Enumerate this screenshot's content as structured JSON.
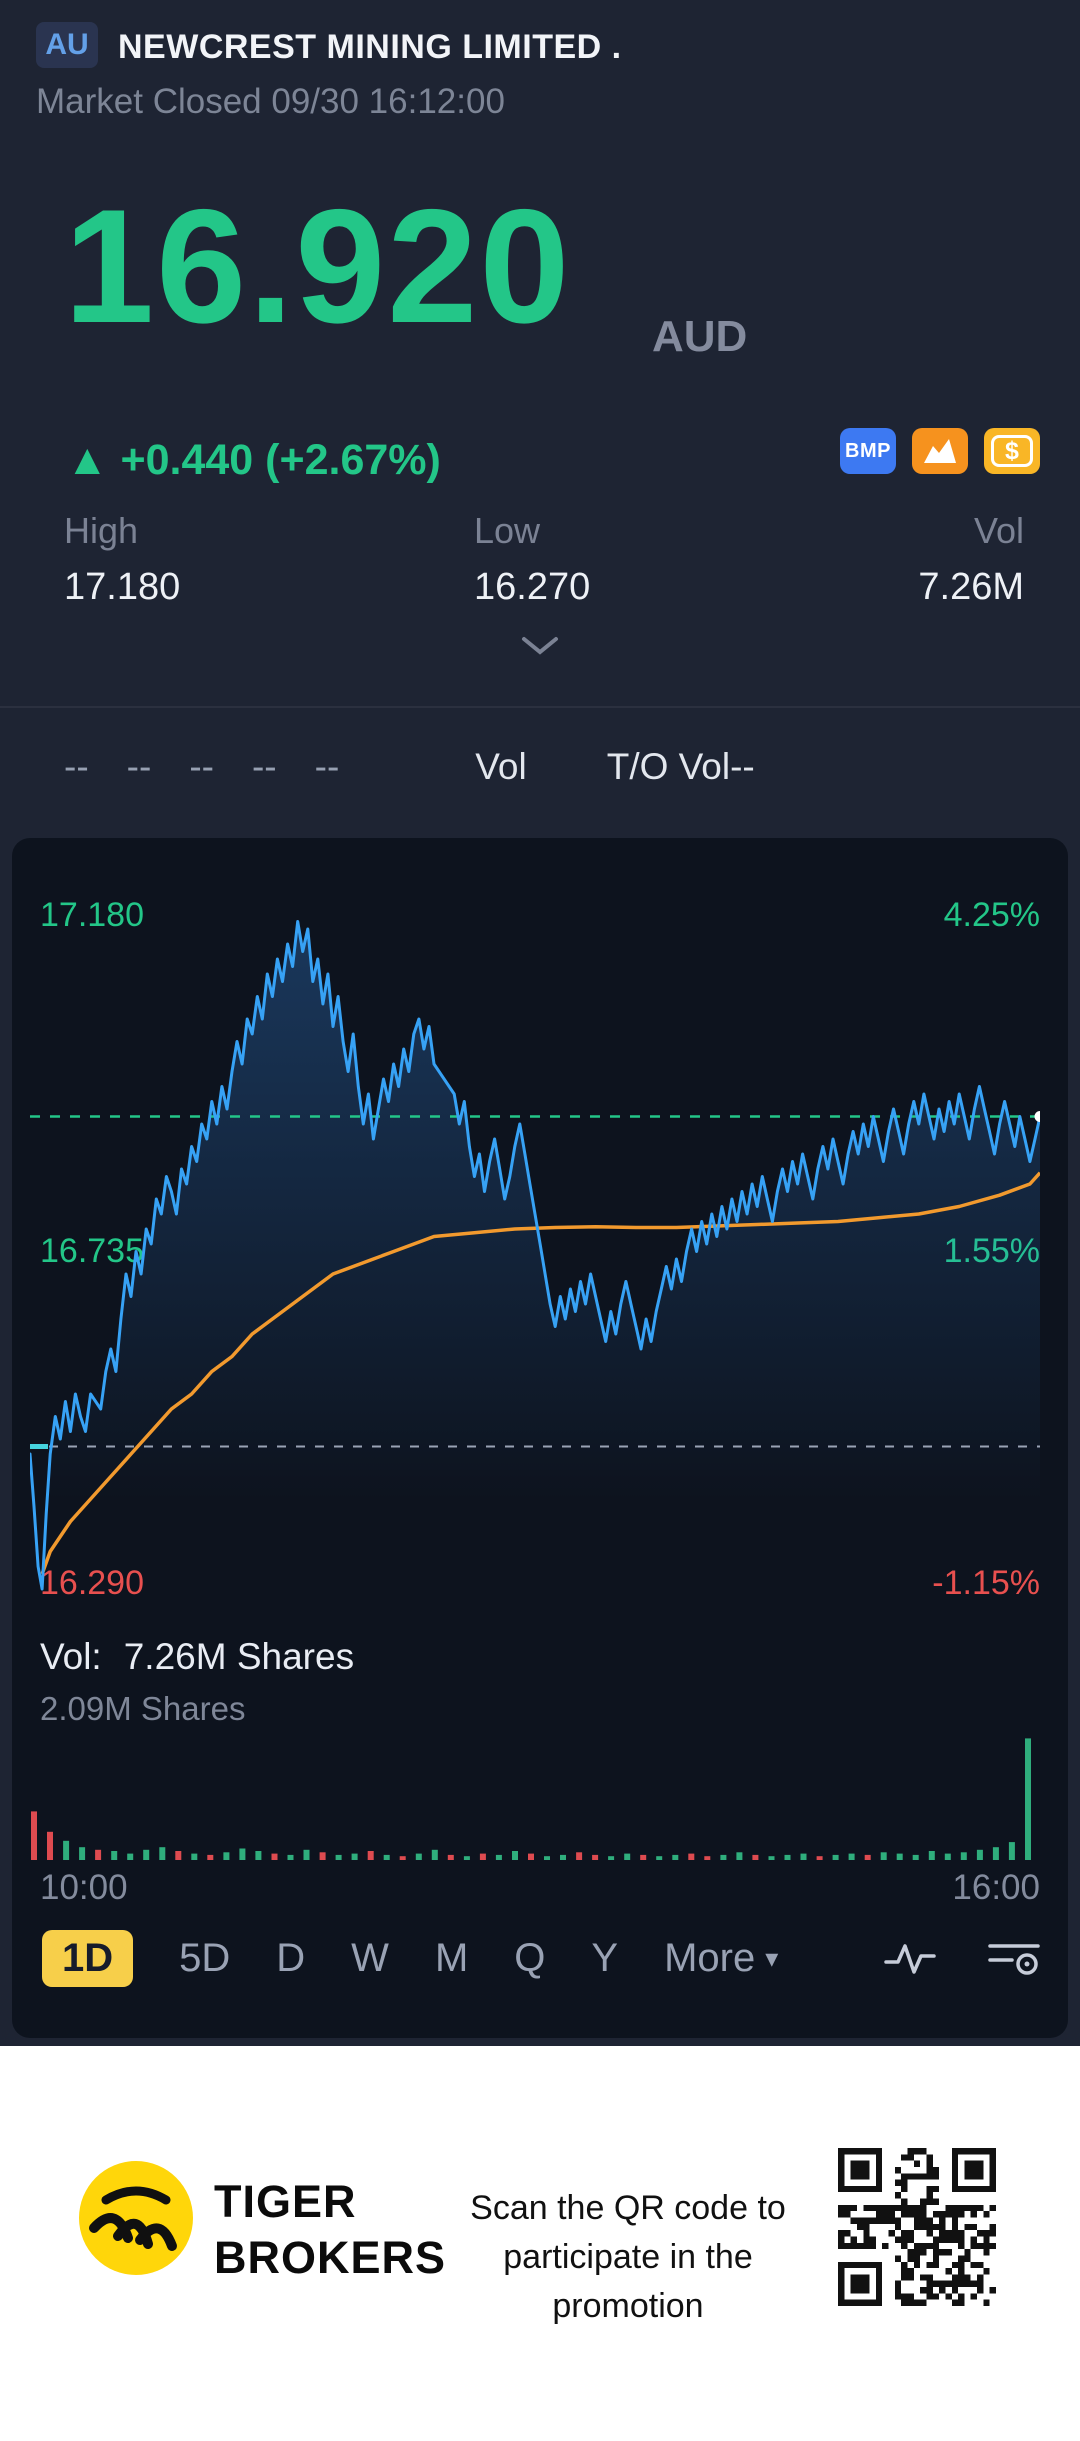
{
  "colors": {
    "green": "#23c688",
    "red": "#e8504f",
    "blue": "#37a2f5",
    "orange": "#f29a2e",
    "tab_yellow": "#f7cf4a",
    "panel_bg": "#0d131e",
    "page_bg": "#1e2433"
  },
  "header": {
    "exchange_badge": "AU",
    "title": "NEWCREST MINING LIMITED .",
    "status_line": "Market Closed 09/30 16:12:00",
    "price": "16.920",
    "currency": "AUD",
    "change": "▲ +0.440 (+2.67%)",
    "badge_bmp": "BMP",
    "badge_dollar": "$",
    "stats": [
      {
        "label": "High",
        "value": "17.180"
      },
      {
        "label": "Low",
        "value": "16.270"
      },
      {
        "label": "Vol",
        "value": "7.26M"
      }
    ]
  },
  "indicator_bar": {
    "items": [
      "--",
      "--",
      "--",
      "--",
      "--",
      "Vol",
      "T/O Vol--"
    ]
  },
  "chart_labels": {
    "left": [
      "17.180",
      "16.735",
      "16.290"
    ],
    "right": [
      "4.25%",
      "1.55%",
      "-1.15%"
    ],
    "vol_prefix": "Vol:",
    "vol_value": "7.26M Shares",
    "vol_scale": "2.09M Shares",
    "x_left": "10:00",
    "x_right": "16:00"
  },
  "chart_data": {
    "type": "line",
    "title": "NEWCREST MINING LIMITED intraday price (1D)",
    "x_range": [
      "10:00",
      "16:00"
    ],
    "y_domain": [
      16.27,
      17.23
    ],
    "prev_close": 16.48,
    "last_price": 16.92,
    "high": 17.18,
    "low": 16.29,
    "left_axis": [
      17.18,
      16.735,
      16.29
    ],
    "right_axis_pct": [
      4.25,
      1.55,
      -1.15
    ],
    "volume_total": "7.26M",
    "volume_max_label": "2.09M",
    "price_series": [
      [
        0,
        16.47
      ],
      [
        0.004,
        16.4
      ],
      [
        0.008,
        16.32
      ],
      [
        0.012,
        16.29
      ],
      [
        0.016,
        16.39
      ],
      [
        0.02,
        16.47
      ],
      [
        0.025,
        16.52
      ],
      [
        0.03,
        16.49
      ],
      [
        0.035,
        16.54
      ],
      [
        0.04,
        16.5
      ],
      [
        0.045,
        16.55
      ],
      [
        0.05,
        16.52
      ],
      [
        0.055,
        16.5
      ],
      [
        0.06,
        16.55
      ],
      [
        0.07,
        16.53
      ],
      [
        0.075,
        16.58
      ],
      [
        0.08,
        16.61
      ],
      [
        0.085,
        16.58
      ],
      [
        0.09,
        16.65
      ],
      [
        0.095,
        16.71
      ],
      [
        0.1,
        16.68
      ],
      [
        0.105,
        16.74
      ],
      [
        0.11,
        16.71
      ],
      [
        0.115,
        16.77
      ],
      [
        0.12,
        16.75
      ],
      [
        0.125,
        16.81
      ],
      [
        0.13,
        16.79
      ],
      [
        0.135,
        16.84
      ],
      [
        0.14,
        16.82
      ],
      [
        0.145,
        16.79
      ],
      [
        0.15,
        16.85
      ],
      [
        0.155,
        16.83
      ],
      [
        0.16,
        16.88
      ],
      [
        0.165,
        16.86
      ],
      [
        0.17,
        16.91
      ],
      [
        0.175,
        16.89
      ],
      [
        0.18,
        16.94
      ],
      [
        0.185,
        16.91
      ],
      [
        0.19,
        16.96
      ],
      [
        0.195,
        16.93
      ],
      [
        0.2,
        16.98
      ],
      [
        0.205,
        17.02
      ],
      [
        0.21,
        16.99
      ],
      [
        0.215,
        17.05
      ],
      [
        0.22,
        17.03
      ],
      [
        0.225,
        17.08
      ],
      [
        0.23,
        17.05
      ],
      [
        0.235,
        17.11
      ],
      [
        0.24,
        17.08
      ],
      [
        0.245,
        17.13
      ],
      [
        0.25,
        17.1
      ],
      [
        0.255,
        17.15
      ],
      [
        0.26,
        17.12
      ],
      [
        0.265,
        17.18
      ],
      [
        0.27,
        17.14
      ],
      [
        0.275,
        17.17
      ],
      [
        0.28,
        17.1
      ],
      [
        0.285,
        17.13
      ],
      [
        0.29,
        17.07
      ],
      [
        0.295,
        17.11
      ],
      [
        0.3,
        17.04
      ],
      [
        0.305,
        17.08
      ],
      [
        0.31,
        17.02
      ],
      [
        0.315,
        16.98
      ],
      [
        0.32,
        17.03
      ],
      [
        0.325,
        16.96
      ],
      [
        0.33,
        16.91
      ],
      [
        0.335,
        16.95
      ],
      [
        0.34,
        16.89
      ],
      [
        0.345,
        16.93
      ],
      [
        0.35,
        16.97
      ],
      [
        0.355,
        16.94
      ],
      [
        0.36,
        16.99
      ],
      [
        0.365,
        16.96
      ],
      [
        0.37,
        17.01
      ],
      [
        0.375,
        16.98
      ],
      [
        0.38,
        17.03
      ],
      [
        0.385,
        17.05
      ],
      [
        0.39,
        17.01
      ],
      [
        0.395,
        17.04
      ],
      [
        0.4,
        16.99
      ],
      [
        0.41,
        16.97
      ],
      [
        0.42,
        16.95
      ],
      [
        0.425,
        16.91
      ],
      [
        0.43,
        16.94
      ],
      [
        0.435,
        16.88
      ],
      [
        0.44,
        16.84
      ],
      [
        0.445,
        16.87
      ],
      [
        0.45,
        16.82
      ],
      [
        0.455,
        16.86
      ],
      [
        0.46,
        16.89
      ],
      [
        0.465,
        16.85
      ],
      [
        0.47,
        16.81
      ],
      [
        0.475,
        16.84
      ],
      [
        0.48,
        16.88
      ],
      [
        0.485,
        16.91
      ],
      [
        0.49,
        16.87
      ],
      [
        0.495,
        16.83
      ],
      [
        0.5,
        16.79
      ],
      [
        0.505,
        16.75
      ],
      [
        0.51,
        16.71
      ],
      [
        0.515,
        16.67
      ],
      [
        0.52,
        16.64
      ],
      [
        0.525,
        16.68
      ],
      [
        0.53,
        16.65
      ],
      [
        0.535,
        16.69
      ],
      [
        0.54,
        16.66
      ],
      [
        0.545,
        16.7
      ],
      [
        0.55,
        16.67
      ],
      [
        0.555,
        16.71
      ],
      [
        0.56,
        16.68
      ],
      [
        0.565,
        16.65
      ],
      [
        0.57,
        16.62
      ],
      [
        0.575,
        16.66
      ],
      [
        0.58,
        16.63
      ],
      [
        0.585,
        16.67
      ],
      [
        0.59,
        16.7
      ],
      [
        0.595,
        16.67
      ],
      [
        0.6,
        16.64
      ],
      [
        0.605,
        16.61
      ],
      [
        0.61,
        16.65
      ],
      [
        0.615,
        16.62
      ],
      [
        0.62,
        16.66
      ],
      [
        0.625,
        16.69
      ],
      [
        0.63,
        16.72
      ],
      [
        0.635,
        16.69
      ],
      [
        0.64,
        16.73
      ],
      [
        0.645,
        16.7
      ],
      [
        0.65,
        16.74
      ],
      [
        0.655,
        16.77
      ],
      [
        0.66,
        16.74
      ],
      [
        0.665,
        16.78
      ],
      [
        0.67,
        16.75
      ],
      [
        0.675,
        16.79
      ],
      [
        0.68,
        16.76
      ],
      [
        0.685,
        16.8
      ],
      [
        0.69,
        16.77
      ],
      [
        0.695,
        16.81
      ],
      [
        0.7,
        16.78
      ],
      [
        0.705,
        16.82
      ],
      [
        0.71,
        16.79
      ],
      [
        0.715,
        16.83
      ],
      [
        0.72,
        16.8
      ],
      [
        0.725,
        16.84
      ],
      [
        0.73,
        16.81
      ],
      [
        0.735,
        16.78
      ],
      [
        0.74,
        16.82
      ],
      [
        0.745,
        16.85
      ],
      [
        0.75,
        16.82
      ],
      [
        0.755,
        16.86
      ],
      [
        0.76,
        16.83
      ],
      [
        0.765,
        16.87
      ],
      [
        0.77,
        16.84
      ],
      [
        0.775,
        16.81
      ],
      [
        0.78,
        16.85
      ],
      [
        0.785,
        16.88
      ],
      [
        0.79,
        16.85
      ],
      [
        0.795,
        16.89
      ],
      [
        0.8,
        16.86
      ],
      [
        0.805,
        16.83
      ],
      [
        0.81,
        16.87
      ],
      [
        0.815,
        16.9
      ],
      [
        0.82,
        16.87
      ],
      [
        0.825,
        16.91
      ],
      [
        0.83,
        16.88
      ],
      [
        0.835,
        16.92
      ],
      [
        0.84,
        16.89
      ],
      [
        0.845,
        16.86
      ],
      [
        0.85,
        16.9
      ],
      [
        0.855,
        16.93
      ],
      [
        0.86,
        16.9
      ],
      [
        0.865,
        16.87
      ],
      [
        0.87,
        16.91
      ],
      [
        0.875,
        16.94
      ],
      [
        0.88,
        16.91
      ],
      [
        0.885,
        16.95
      ],
      [
        0.89,
        16.92
      ],
      [
        0.895,
        16.89
      ],
      [
        0.9,
        16.93
      ],
      [
        0.905,
        16.9
      ],
      [
        0.91,
        16.94
      ],
      [
        0.915,
        16.91
      ],
      [
        0.92,
        16.95
      ],
      [
        0.925,
        16.92
      ],
      [
        0.93,
        16.89
      ],
      [
        0.935,
        16.93
      ],
      [
        0.94,
        16.96
      ],
      [
        0.945,
        16.93
      ],
      [
        0.95,
        16.9
      ],
      [
        0.955,
        16.87
      ],
      [
        0.96,
        16.91
      ],
      [
        0.965,
        16.94
      ],
      [
        0.97,
        16.91
      ],
      [
        0.975,
        16.88
      ],
      [
        0.98,
        16.92
      ],
      [
        0.985,
        16.89
      ],
      [
        0.99,
        16.86
      ],
      [
        0.995,
        16.89
      ],
      [
        1,
        16.92
      ]
    ],
    "avg_series": [
      [
        0.012,
        16.31
      ],
      [
        0.02,
        16.34
      ],
      [
        0.04,
        16.38
      ],
      [
        0.06,
        16.41
      ],
      [
        0.08,
        16.44
      ],
      [
        0.1,
        16.47
      ],
      [
        0.12,
        16.5
      ],
      [
        0.14,
        16.53
      ],
      [
        0.16,
        16.55
      ],
      [
        0.18,
        16.58
      ],
      [
        0.2,
        16.6
      ],
      [
        0.22,
        16.63
      ],
      [
        0.24,
        16.65
      ],
      [
        0.26,
        16.67
      ],
      [
        0.28,
        16.69
      ],
      [
        0.3,
        16.71
      ],
      [
        0.32,
        16.72
      ],
      [
        0.34,
        16.73
      ],
      [
        0.36,
        16.74
      ],
      [
        0.38,
        16.75
      ],
      [
        0.4,
        16.76
      ],
      [
        0.44,
        16.765
      ],
      [
        0.48,
        16.77
      ],
      [
        0.52,
        16.772
      ],
      [
        0.56,
        16.773
      ],
      [
        0.6,
        16.772
      ],
      [
        0.64,
        16.772
      ],
      [
        0.68,
        16.774
      ],
      [
        0.72,
        16.776
      ],
      [
        0.76,
        16.778
      ],
      [
        0.8,
        16.78
      ],
      [
        0.84,
        16.785
      ],
      [
        0.88,
        16.79
      ],
      [
        0.92,
        16.8
      ],
      [
        0.96,
        16.815
      ],
      [
        0.99,
        16.83
      ],
      [
        1,
        16.845
      ]
    ],
    "volume_bars": [
      [
        0.38,
        "r"
      ],
      [
        0.22,
        "r"
      ],
      [
        0.15,
        "g"
      ],
      [
        0.1,
        "g"
      ],
      [
        0.08,
        "r"
      ],
      [
        0.07,
        "g"
      ],
      [
        0.05,
        "g"
      ],
      [
        0.08,
        "g"
      ],
      [
        0.1,
        "g"
      ],
      [
        0.07,
        "r"
      ],
      [
        0.05,
        "g"
      ],
      [
        0.04,
        "r"
      ],
      [
        0.06,
        "g"
      ],
      [
        0.09,
        "g"
      ],
      [
        0.07,
        "g"
      ],
      [
        0.05,
        "r"
      ],
      [
        0.04,
        "g"
      ],
      [
        0.08,
        "g"
      ],
      [
        0.06,
        "r"
      ],
      [
        0.04,
        "g"
      ],
      [
        0.05,
        "g"
      ],
      [
        0.07,
        "r"
      ],
      [
        0.04,
        "g"
      ],
      [
        0.03,
        "r"
      ],
      [
        0.05,
        "g"
      ],
      [
        0.08,
        "g"
      ],
      [
        0.04,
        "r"
      ],
      [
        0.03,
        "g"
      ],
      [
        0.05,
        "r"
      ],
      [
        0.04,
        "g"
      ],
      [
        0.07,
        "g"
      ],
      [
        0.05,
        "r"
      ],
      [
        0.03,
        "g"
      ],
      [
        0.04,
        "g"
      ],
      [
        0.06,
        "r"
      ],
      [
        0.04,
        "r"
      ],
      [
        0.03,
        "g"
      ],
      [
        0.05,
        "g"
      ],
      [
        0.04,
        "r"
      ],
      [
        0.03,
        "g"
      ],
      [
        0.04,
        "g"
      ],
      [
        0.05,
        "r"
      ],
      [
        0.03,
        "r"
      ],
      [
        0.04,
        "g"
      ],
      [
        0.06,
        "g"
      ],
      [
        0.04,
        "r"
      ],
      [
        0.03,
        "g"
      ],
      [
        0.04,
        "g"
      ],
      [
        0.05,
        "g"
      ],
      [
        0.03,
        "r"
      ],
      [
        0.04,
        "g"
      ],
      [
        0.05,
        "g"
      ],
      [
        0.04,
        "r"
      ],
      [
        0.06,
        "g"
      ],
      [
        0.05,
        "g"
      ],
      [
        0.04,
        "g"
      ],
      [
        0.07,
        "g"
      ],
      [
        0.05,
        "g"
      ],
      [
        0.06,
        "g"
      ],
      [
        0.08,
        "g"
      ],
      [
        0.1,
        "g"
      ],
      [
        0.14,
        "g"
      ],
      [
        0.95,
        "g"
      ]
    ]
  },
  "tabs": {
    "items": [
      "1D",
      "5D",
      "D",
      "W",
      "M",
      "Q",
      "Y"
    ],
    "more": "More",
    "more_caret": "▾",
    "selected": "1D"
  },
  "footer": {
    "brand_line1": "TIGER",
    "brand_line2": "BROKERS",
    "promo_lines": [
      "Scan the QR code to",
      "participate in the",
      "promotion"
    ]
  }
}
